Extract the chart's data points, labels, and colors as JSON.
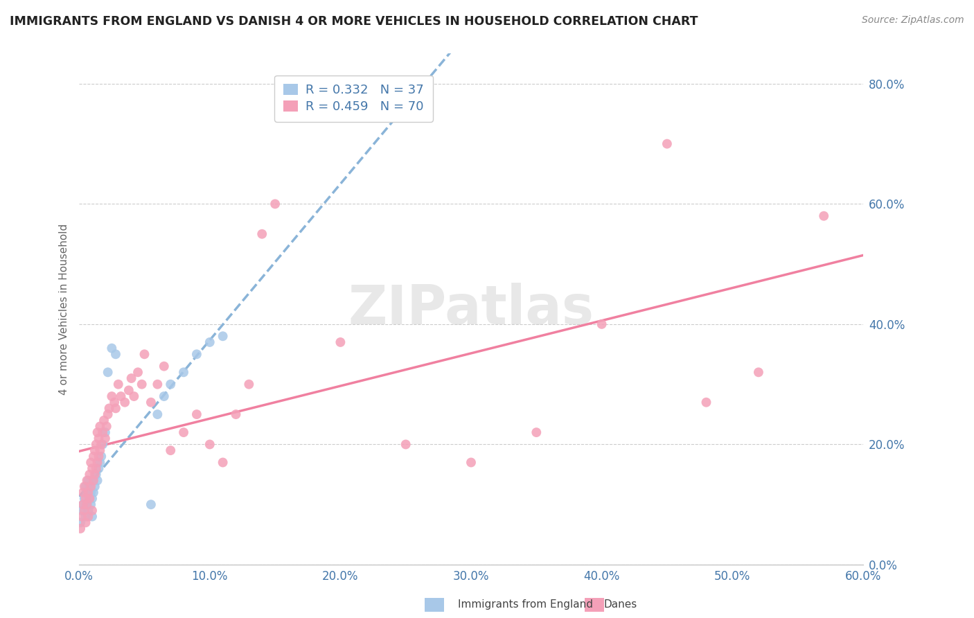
{
  "title": "IMMIGRANTS FROM ENGLAND VS DANISH 4 OR MORE VEHICLES IN HOUSEHOLD CORRELATION CHART",
  "source": "Source: ZipAtlas.com",
  "xlim": [
    0.0,
    0.6
  ],
  "ylim": [
    0.0,
    0.85
  ],
  "legend1_R": "0.332",
  "legend1_N": "37",
  "legend2_R": "0.459",
  "legend2_N": "70",
  "color_england": "#a8c8e8",
  "color_danes": "#f4a0b8",
  "watermark": "ZIPatlas",
  "england_x": [
    0.001,
    0.002,
    0.003,
    0.004,
    0.005,
    0.005,
    0.006,
    0.006,
    0.007,
    0.007,
    0.008,
    0.008,
    0.009,
    0.009,
    0.01,
    0.01,
    0.011,
    0.011,
    0.012,
    0.013,
    0.014,
    0.015,
    0.016,
    0.017,
    0.018,
    0.02,
    0.022,
    0.025,
    0.028,
    0.055,
    0.06,
    0.065,
    0.07,
    0.08,
    0.09,
    0.1,
    0.11
  ],
  "england_y": [
    0.07,
    0.09,
    0.1,
    0.11,
    0.08,
    0.13,
    0.1,
    0.12,
    0.09,
    0.14,
    0.11,
    0.13,
    0.1,
    0.12,
    0.08,
    0.11,
    0.12,
    0.14,
    0.13,
    0.15,
    0.14,
    0.16,
    0.17,
    0.18,
    0.2,
    0.22,
    0.32,
    0.36,
    0.35,
    0.1,
    0.25,
    0.28,
    0.3,
    0.32,
    0.35,
    0.37,
    0.38
  ],
  "danes_x": [
    0.001,
    0.002,
    0.003,
    0.003,
    0.004,
    0.004,
    0.005,
    0.005,
    0.006,
    0.006,
    0.007,
    0.007,
    0.008,
    0.008,
    0.009,
    0.009,
    0.01,
    0.01,
    0.011,
    0.011,
    0.012,
    0.012,
    0.013,
    0.013,
    0.014,
    0.014,
    0.015,
    0.015,
    0.016,
    0.016,
    0.017,
    0.018,
    0.019,
    0.02,
    0.021,
    0.022,
    0.023,
    0.025,
    0.027,
    0.028,
    0.03,
    0.032,
    0.035,
    0.038,
    0.04,
    0.042,
    0.045,
    0.048,
    0.05,
    0.055,
    0.06,
    0.065,
    0.07,
    0.08,
    0.09,
    0.1,
    0.11,
    0.12,
    0.13,
    0.14,
    0.15,
    0.2,
    0.25,
    0.3,
    0.35,
    0.4,
    0.45,
    0.48,
    0.52,
    0.57
  ],
  "danes_y": [
    0.06,
    0.08,
    0.1,
    0.12,
    0.09,
    0.13,
    0.07,
    0.11,
    0.1,
    0.14,
    0.08,
    0.12,
    0.11,
    0.15,
    0.13,
    0.17,
    0.09,
    0.16,
    0.14,
    0.18,
    0.15,
    0.19,
    0.16,
    0.2,
    0.17,
    0.22,
    0.18,
    0.21,
    0.19,
    0.23,
    0.2,
    0.22,
    0.24,
    0.21,
    0.23,
    0.25,
    0.26,
    0.28,
    0.27,
    0.26,
    0.3,
    0.28,
    0.27,
    0.29,
    0.31,
    0.28,
    0.32,
    0.3,
    0.35,
    0.27,
    0.3,
    0.33,
    0.19,
    0.22,
    0.25,
    0.2,
    0.17,
    0.25,
    0.3,
    0.55,
    0.6,
    0.37,
    0.2,
    0.17,
    0.22,
    0.4,
    0.7,
    0.27,
    0.32,
    0.58
  ]
}
